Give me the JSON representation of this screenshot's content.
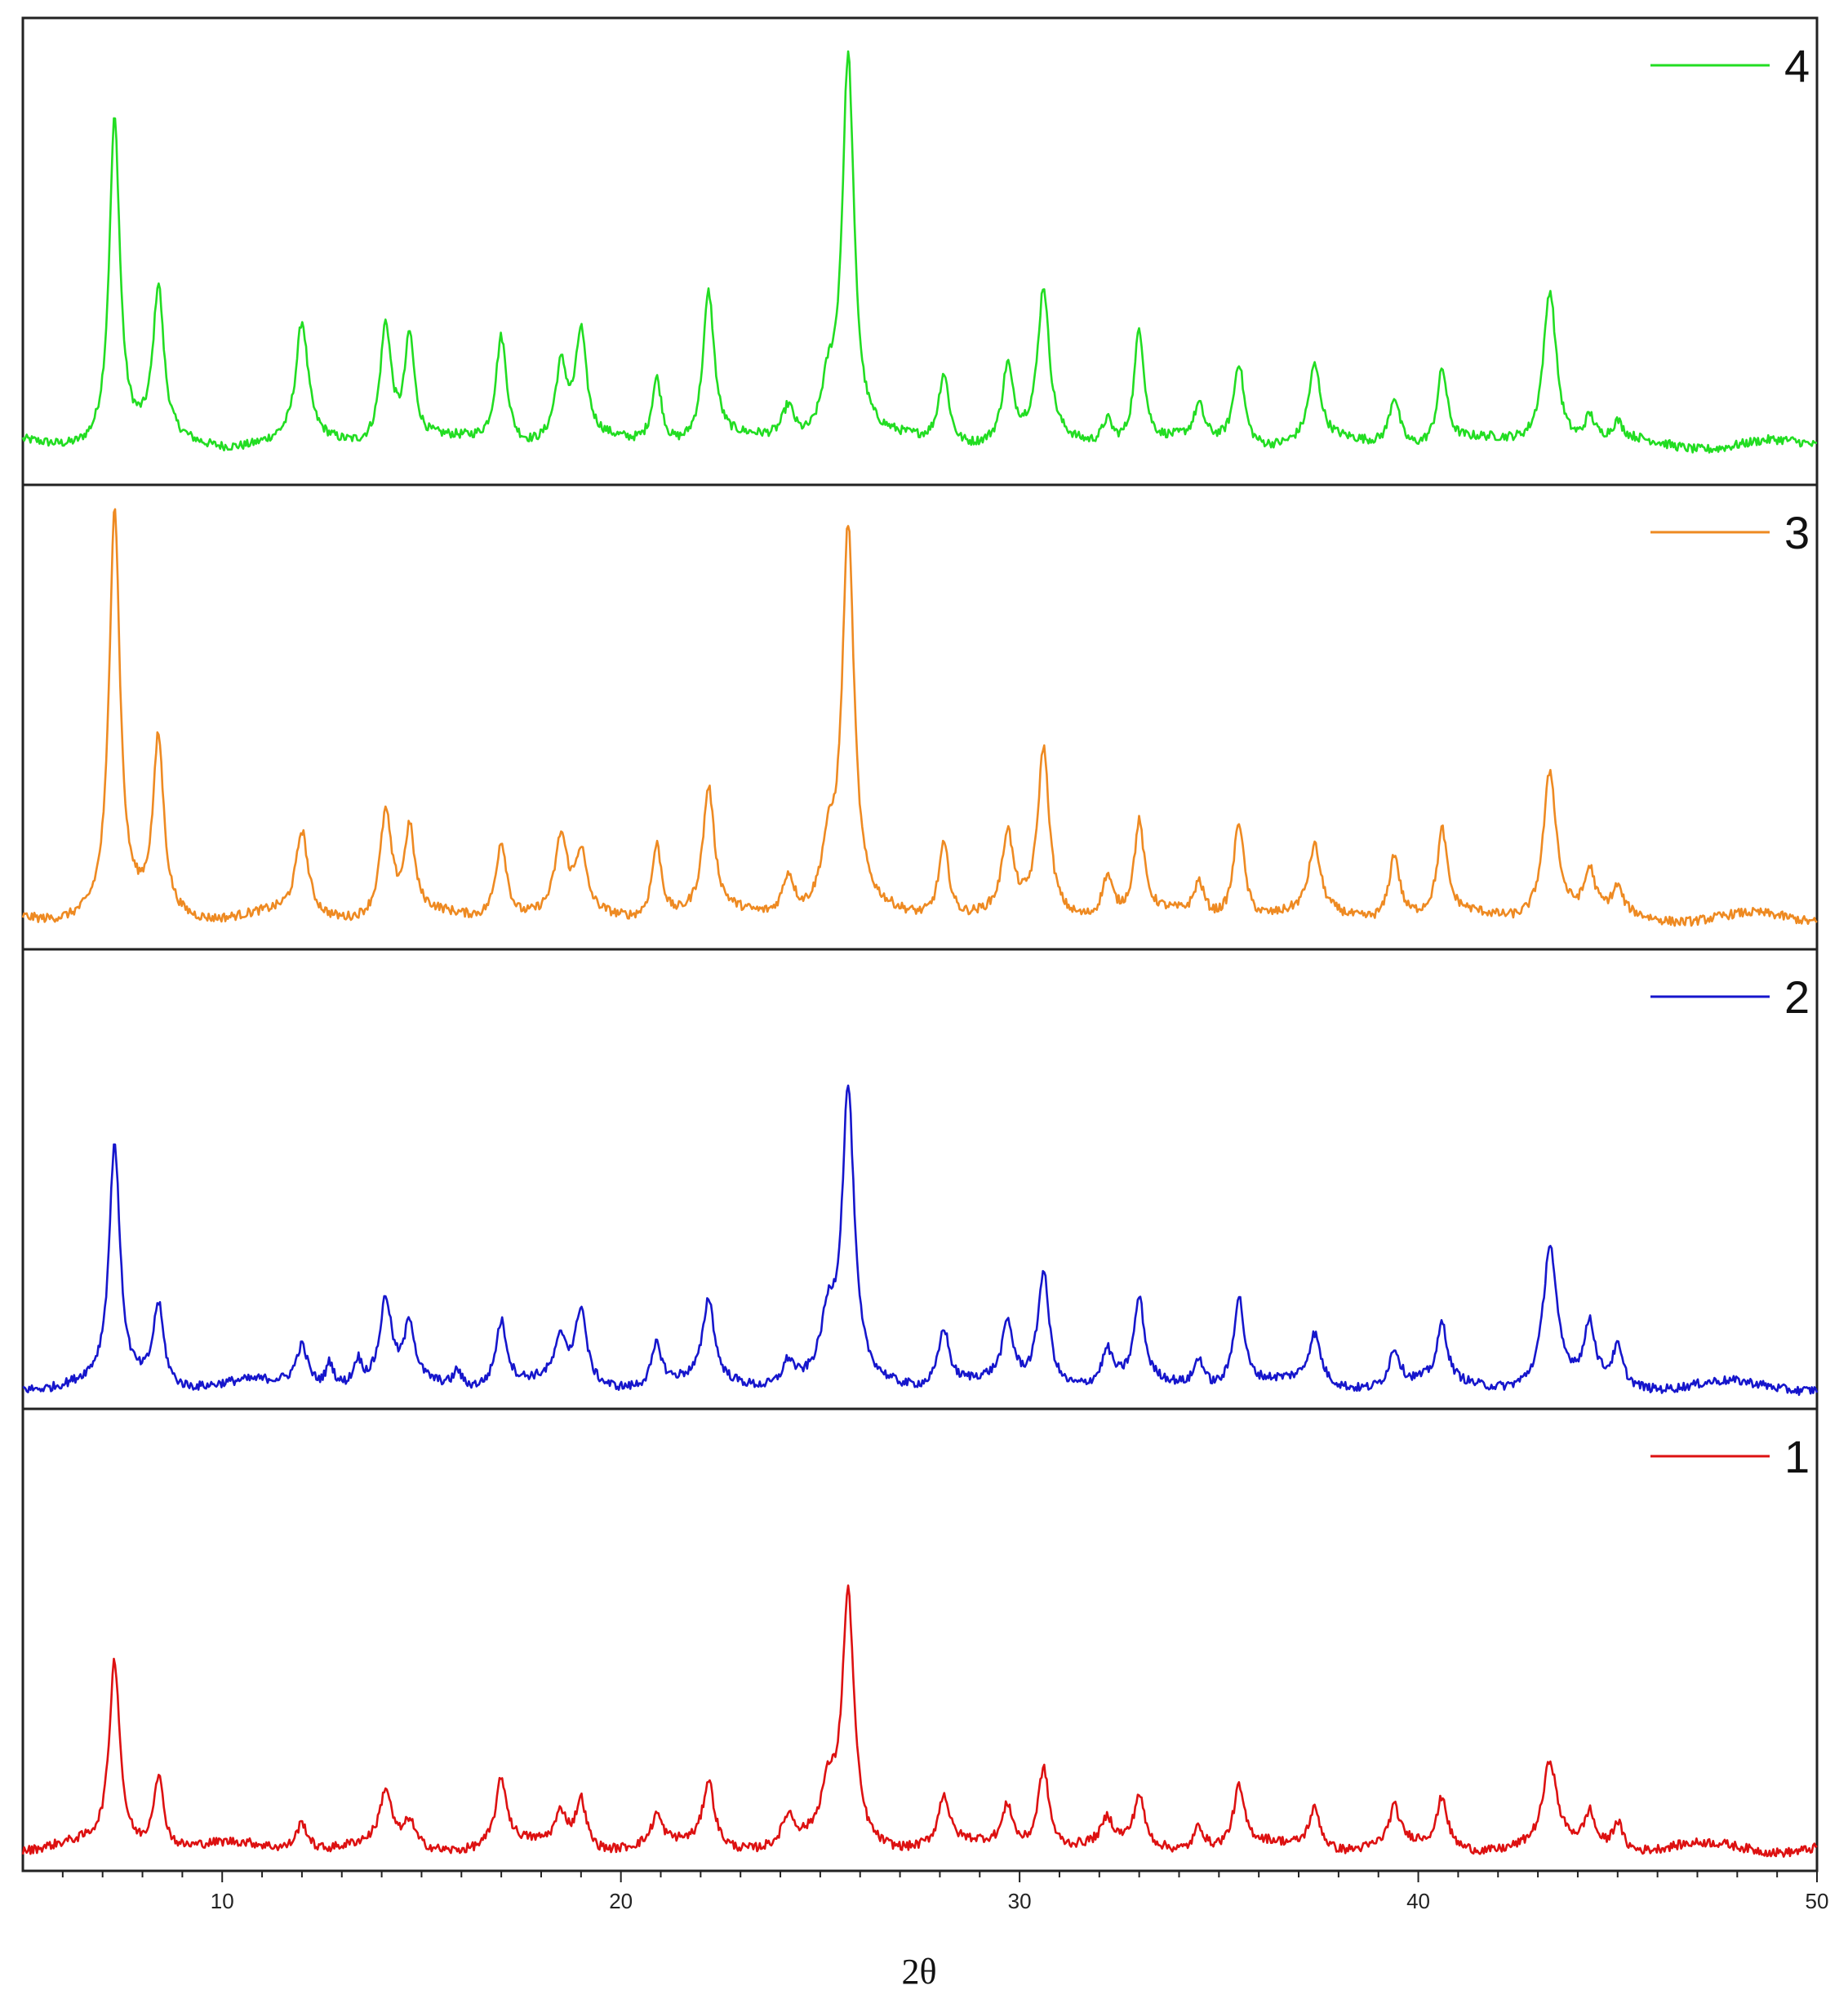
{
  "chart_data": {
    "type": "line",
    "layout": "stacked-panels",
    "xlabel": "2θ",
    "xlim": [
      5,
      50
    ],
    "xticks": [
      10,
      20,
      30,
      40,
      50
    ],
    "ylabel": "",
    "grid": false,
    "legend_placement": "top-right of each panel",
    "peaks": [
      {
        "pos": 7.3,
        "w": 0.16
      },
      {
        "pos": 8.4,
        "w": 0.16
      },
      {
        "pos": 12.0,
        "w": 0.18
      },
      {
        "pos": 12.7,
        "w": 0.12
      },
      {
        "pos": 13.4,
        "w": 0.12
      },
      {
        "pos": 14.1,
        "w": 0.17
      },
      {
        "pos": 14.7,
        "w": 0.15
      },
      {
        "pos": 15.9,
        "w": 0.12
      },
      {
        "pos": 17.0,
        "w": 0.17
      },
      {
        "pos": 18.5,
        "w": 0.18
      },
      {
        "pos": 19.0,
        "w": 0.16
      },
      {
        "pos": 20.9,
        "w": 0.15
      },
      {
        "pos": 22.2,
        "w": 0.17
      },
      {
        "pos": 24.2,
        "w": 0.18
      },
      {
        "pos": 25.2,
        "w": 0.22
      },
      {
        "pos": 25.7,
        "w": 0.18
      },
      {
        "pos": 28.1,
        "w": 0.16
      },
      {
        "pos": 29.7,
        "w": 0.16
      },
      {
        "pos": 30.6,
        "w": 0.17
      },
      {
        "pos": 32.2,
        "w": 0.16
      },
      {
        "pos": 33.0,
        "w": 0.15
      },
      {
        "pos": 34.5,
        "w": 0.15
      },
      {
        "pos": 35.5,
        "w": 0.16
      },
      {
        "pos": 37.4,
        "w": 0.18
      },
      {
        "pos": 39.4,
        "w": 0.16
      },
      {
        "pos": 40.6,
        "w": 0.15
      },
      {
        "pos": 43.3,
        "w": 0.2
      },
      {
        "pos": 44.3,
        "w": 0.15
      },
      {
        "pos": 45.0,
        "w": 0.15
      }
    ],
    "series": [
      {
        "name": "4",
        "color": "#22dd22",
        "baseline": 0.08,
        "ylim": [
          0,
          1.05
        ],
        "intensities": [
          0.78,
          0.36,
          0.28,
          0.0,
          0.0,
          0.29,
          0.25,
          0.0,
          0.26,
          0.18,
          0.25,
          0.16,
          0.36,
          0.08,
          0.12,
          0.92,
          0.17,
          0.18,
          0.36,
          0.06,
          0.28,
          0.08,
          0.2,
          0.18,
          0.12,
          0.18,
          0.38,
          0.06,
          0.04
        ]
      },
      {
        "name": "3",
        "color": "#ee8a22",
        "baseline": 0.06,
        "ylim": [
          0,
          1.05
        ],
        "intensities": [
          0.98,
          0.42,
          0.2,
          0.0,
          0.0,
          0.25,
          0.2,
          0.0,
          0.19,
          0.18,
          0.14,
          0.18,
          0.3,
          0.1,
          0.14,
          0.92,
          0.18,
          0.19,
          0.4,
          0.1,
          0.22,
          0.08,
          0.24,
          0.16,
          0.16,
          0.2,
          0.36,
          0.1,
          0.06
        ]
      },
      {
        "name": "2",
        "color": "#1616cc",
        "baseline": 0.04,
        "ylim": [
          0,
          1.05
        ],
        "intensities": [
          0.58,
          0.2,
          0.1,
          0.06,
          0.06,
          0.2,
          0.14,
          0.04,
          0.16,
          0.1,
          0.18,
          0.1,
          0.2,
          0.06,
          0.14,
          0.7,
          0.14,
          0.14,
          0.28,
          0.08,
          0.2,
          0.07,
          0.22,
          0.12,
          0.09,
          0.14,
          0.34,
          0.14,
          0.09
        ]
      },
      {
        "name": "1",
        "color": "#dd1111",
        "baseline": 0.04,
        "ylim": [
          0,
          1.05
        ],
        "intensities": [
          0.45,
          0.18,
          0.07,
          0.0,
          0.0,
          0.13,
          0.06,
          0.0,
          0.16,
          0.08,
          0.12,
          0.07,
          0.16,
          0.07,
          0.12,
          0.6,
          0.12,
          0.1,
          0.2,
          0.06,
          0.12,
          0.06,
          0.14,
          0.1,
          0.09,
          0.12,
          0.2,
          0.08,
          0.07
        ]
      }
    ]
  }
}
